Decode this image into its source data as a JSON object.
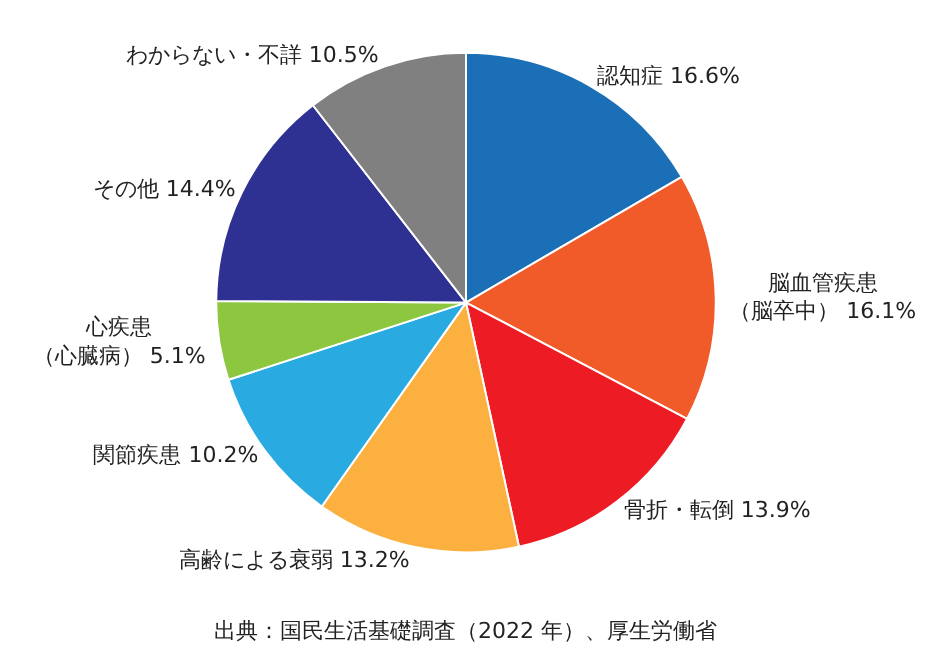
{
  "chart_data": {
    "type": "pie",
    "categories": [
      "認知症",
      "脳血管疾患（脳卒中）",
      "骨折・転倒",
      "高齢による衰弱",
      "関節疾患",
      "心疾患（心臓病）",
      "その他",
      "わからない・不詳"
    ],
    "values": [
      16.6,
      16.1,
      13.9,
      13.2,
      10.2,
      5.1,
      14.4,
      10.5
    ],
    "colors": [
      "#1b6fb6",
      "#f15a29",
      "#ed1c24",
      "#fbb040",
      "#29abe2",
      "#8dc63f",
      "#2e3192",
      "#808080"
    ],
    "value_labels": [
      "16.6%",
      "16.1%",
      "13.9%",
      "13.2%",
      "10.2%",
      "5.1%",
      "14.4%",
      "10.5%"
    ],
    "legend": false,
    "annotations": [
      "出典：国民生活基礎調査（2022 年）、厚生労働省"
    ]
  }
}
